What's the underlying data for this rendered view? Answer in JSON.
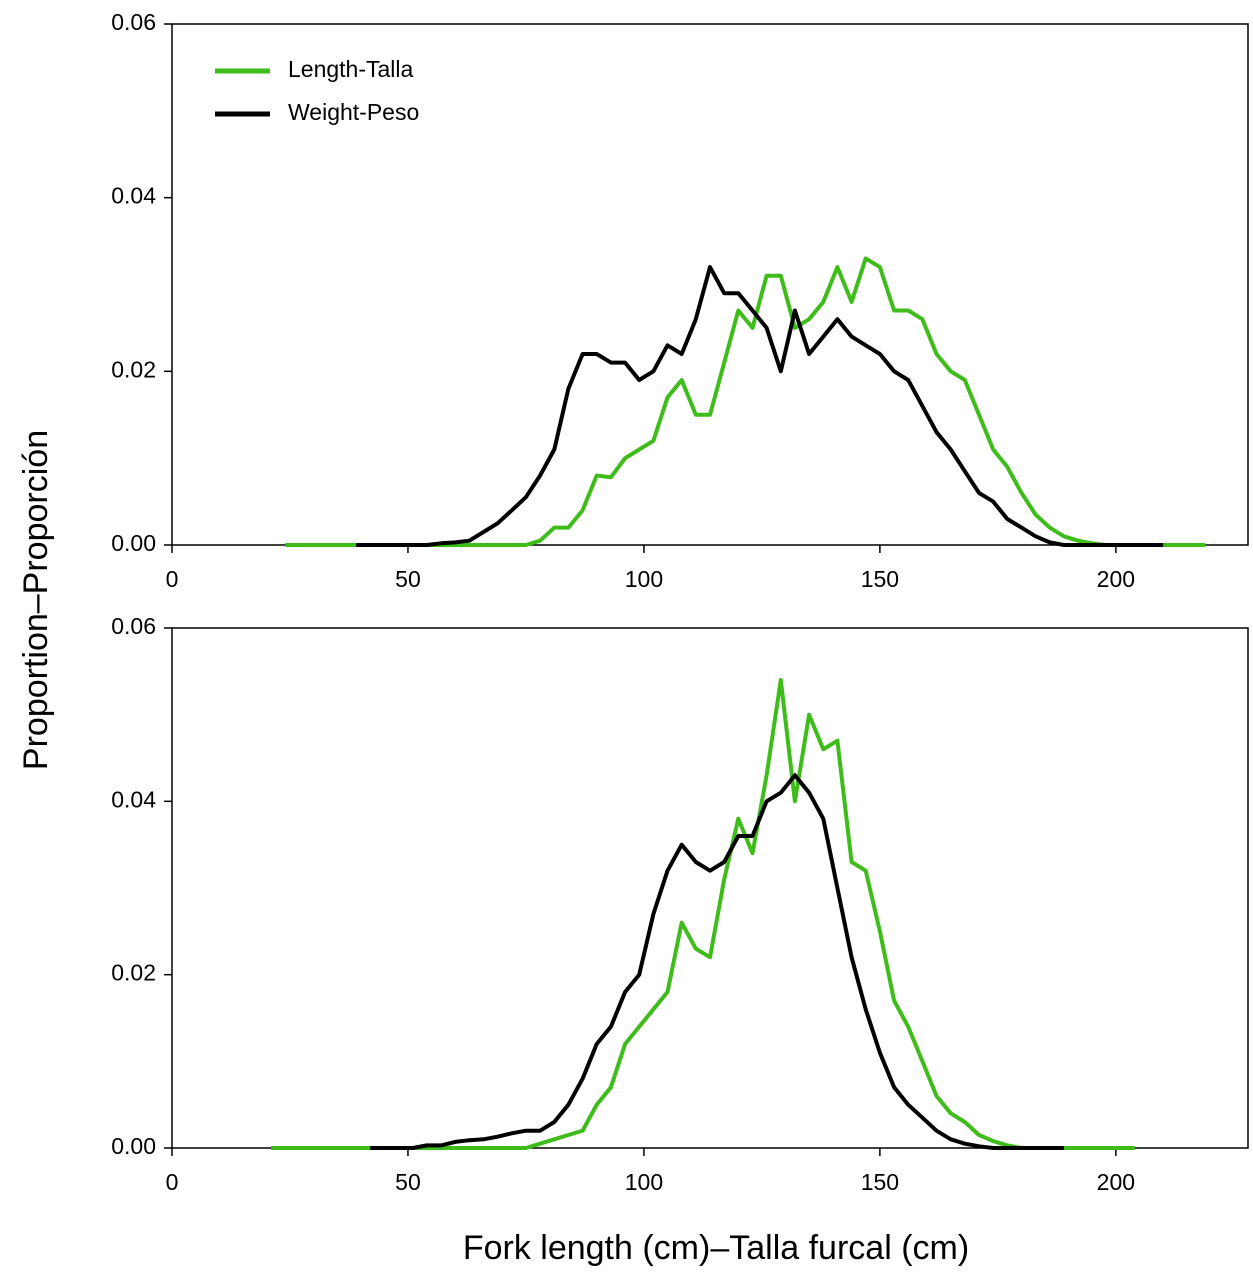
{
  "ylabel": "Proportion–Proporción",
  "xlabel": "Fork length (cm)–Talla furcal (cm)",
  "chart_data": [
    {
      "type": "line",
      "legend": "upper left",
      "x": [
        24,
        27,
        30,
        33,
        36,
        39,
        42,
        45,
        48,
        51,
        54,
        57,
        60,
        63,
        66,
        69,
        72,
        75,
        78,
        81,
        84,
        87,
        90,
        93,
        96,
        99,
        102,
        105,
        108,
        111,
        114,
        117,
        120,
        123,
        126,
        129,
        132,
        135,
        138,
        141,
        144,
        147,
        150,
        153,
        156,
        159,
        162,
        165,
        168,
        171,
        174,
        177,
        180,
        183,
        186,
        189,
        192,
        195,
        198,
        201,
        204,
        207,
        210,
        213,
        216,
        219
      ],
      "series": [
        {
          "name": "Length-Talla",
          "color": "#3ebd1a",
          "values": [
            0,
            0,
            0,
            0,
            0,
            0,
            0,
            0,
            0,
            0,
            0,
            0,
            0,
            0,
            0,
            0,
            0,
            0,
            0.0005,
            0.002,
            0.002,
            0.004,
            0.008,
            0.0078,
            0.01,
            0.011,
            0.012,
            0.017,
            0.019,
            0.015,
            0.015,
            0.021,
            0.027,
            0.025,
            0.031,
            0.031,
            0.025,
            0.026,
            0.028,
            0.032,
            0.028,
            0.033,
            0.032,
            0.027,
            0.027,
            0.026,
            0.022,
            0.02,
            0.019,
            0.015,
            0.011,
            0.009,
            0.006,
            0.0035,
            0.002,
            0.001,
            0.0005,
            0.0002,
            0,
            0,
            0,
            0,
            0,
            0,
            0,
            0
          ]
        },
        {
          "name": "Weight-Peso",
          "color": "#000000",
          "values": [
            null,
            null,
            null,
            null,
            null,
            0,
            0,
            0,
            0,
            0,
            0,
            0.0002,
            0.0003,
            0.0005,
            0.0015,
            0.0025,
            0.004,
            0.0055,
            0.008,
            0.011,
            0.018,
            0.022,
            0.022,
            0.021,
            0.021,
            0.019,
            0.02,
            0.023,
            0.022,
            0.026,
            0.032,
            0.029,
            0.029,
            0.027,
            0.025,
            0.02,
            0.027,
            0.022,
            0.024,
            0.026,
            0.024,
            0.023,
            0.022,
            0.02,
            0.019,
            0.016,
            0.013,
            0.011,
            0.0085,
            0.006,
            0.005,
            0.003,
            0.002,
            0.001,
            0.0003,
            0,
            0,
            0,
            0,
            0,
            0,
            0,
            0,
            null,
            null,
            null
          ]
        }
      ],
      "xlim": [
        0,
        228
      ],
      "ylim": [
        0,
        0.06
      ],
      "xticks": [
        0,
        50,
        100,
        150,
        200
      ],
      "yticks": [
        {
          "value": 0,
          "label": "0.00"
        },
        {
          "value": 0.02,
          "label": "0.02"
        },
        {
          "value": 0.04,
          "label": "0.04"
        },
        {
          "value": 0.06,
          "label": "0.06"
        }
      ]
    },
    {
      "type": "line",
      "x": [
        21,
        24,
        27,
        30,
        33,
        36,
        39,
        42,
        45,
        48,
        51,
        54,
        57,
        60,
        63,
        66,
        69,
        72,
        75,
        78,
        81,
        84,
        87,
        90,
        93,
        96,
        99,
        102,
        105,
        108,
        111,
        114,
        117,
        120,
        123,
        126,
        129,
        132,
        135,
        138,
        141,
        144,
        147,
        150,
        153,
        156,
        159,
        162,
        165,
        168,
        171,
        174,
        177,
        180,
        183,
        186,
        189,
        192,
        195,
        198,
        201,
        204
      ],
      "series": [
        {
          "color": "#3ebd1a",
          "values": [
            0,
            0,
            0,
            0,
            0,
            0,
            0,
            0,
            0,
            0,
            0,
            0,
            0,
            0,
            0,
            0,
            0,
            0,
            0,
            0.0005,
            0.001,
            0.0015,
            0.002,
            0.005,
            0.007,
            0.012,
            0.014,
            0.016,
            0.018,
            0.026,
            0.023,
            0.022,
            0.031,
            0.038,
            0.034,
            0.043,
            0.054,
            0.04,
            0.05,
            0.046,
            0.047,
            0.033,
            0.032,
            0.025,
            0.017,
            0.014,
            0.01,
            0.006,
            0.004,
            0.003,
            0.0015,
            0.0008,
            0.0003,
            0,
            0,
            0,
            0,
            0,
            0,
            0,
            0,
            0
          ]
        },
        {
          "color": "#000000",
          "values": [
            null,
            null,
            null,
            null,
            null,
            null,
            null,
            0,
            0,
            0,
            0,
            0.0003,
            0.0003,
            0.0007,
            0.0009,
            0.001,
            0.0013,
            0.0017,
            0.002,
            0.002,
            0.003,
            0.005,
            0.008,
            0.012,
            0.014,
            0.018,
            0.02,
            0.027,
            0.032,
            0.035,
            0.033,
            0.032,
            0.033,
            0.036,
            0.036,
            0.04,
            0.041,
            0.043,
            0.041,
            0.038,
            0.03,
            0.022,
            0.016,
            0.011,
            0.007,
            0.005,
            0.0035,
            0.002,
            0.001,
            0.0005,
            0.0002,
            0,
            0,
            0,
            0,
            0,
            0,
            null,
            null,
            null,
            null,
            null
          ]
        }
      ],
      "xlim": [
        0,
        228
      ],
      "ylim": [
        0,
        0.06
      ],
      "xticks": [
        0,
        50,
        100,
        150,
        200
      ],
      "yticks": [
        {
          "value": 0,
          "label": "0.00"
        },
        {
          "value": 0.02,
          "label": "0.02"
        },
        {
          "value": 0.04,
          "label": "0.04"
        },
        {
          "value": 0.06,
          "label": "0.06"
        }
      ]
    }
  ]
}
